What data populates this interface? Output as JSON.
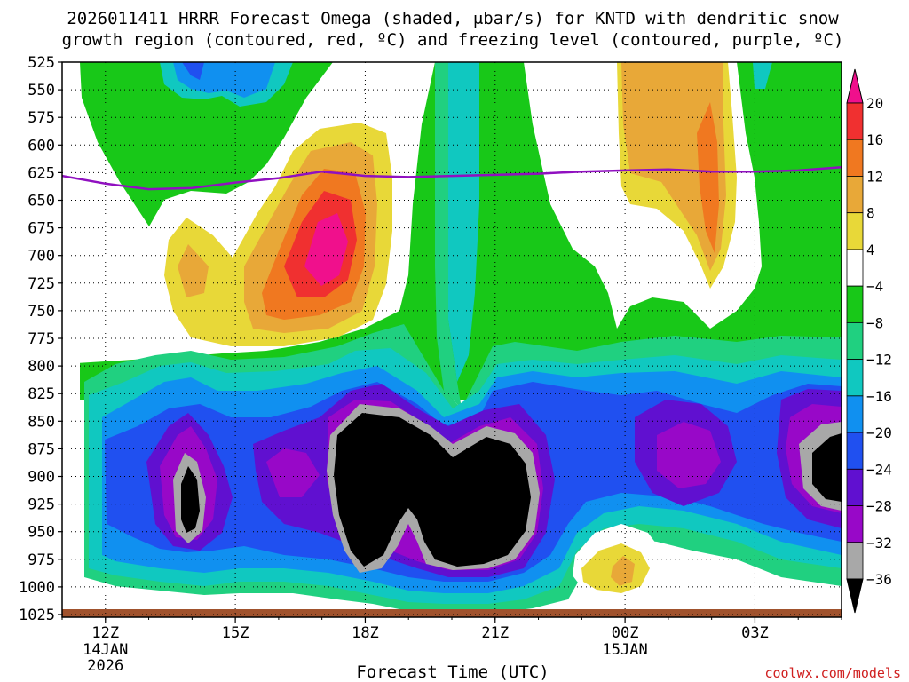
{
  "chart_data": {
    "type": "heatmap",
    "title_line1": "2026011411 HRRR Forecast Omega (shaded, μbar/s) for KNTD with dendritic snow",
    "title_line2": "growth region (contoured, red, ºC) and freezing level (contoured, purple, ºC)",
    "xlabel": "Forecast Time (UTC)",
    "credit": "coolwx.com/models",
    "y_axis": {
      "label": "",
      "inverted": true,
      "range": [
        525,
        1025
      ],
      "ticks": [
        "525",
        "550",
        "575",
        "600",
        "625",
        "650",
        "675",
        "700",
        "725",
        "750",
        "775",
        "800",
        "825",
        "850",
        "875",
        "900",
        "925",
        "950",
        "975",
        "1000",
        "1025"
      ]
    },
    "x_axis": {
      "range_hours": [
        11,
        29
      ],
      "ticks": [
        {
          "hour": 12,
          "label": "12Z",
          "sub1": "14JAN",
          "sub2": "2026"
        },
        {
          "hour": 15,
          "label": "15Z",
          "sub1": "",
          "sub2": ""
        },
        {
          "hour": 18,
          "label": "18Z",
          "sub1": "",
          "sub2": ""
        },
        {
          "hour": 21,
          "label": "21Z",
          "sub1": "",
          "sub2": ""
        },
        {
          "hour": 24,
          "label": "00Z",
          "sub1": "15JAN",
          "sub2": ""
        },
        {
          "hour": 27,
          "label": "03Z",
          "sub1": "",
          "sub2": ""
        }
      ]
    },
    "colorbar": {
      "labels": [
        "20",
        "16",
        "12",
        "8",
        "4",
        "−4",
        "−8",
        "−12",
        "−16",
        "−20",
        "−24",
        "−28",
        "−32",
        "−36"
      ],
      "colors_top_to_bottom": [
        "#f0108c",
        "#f03030",
        "#f07820",
        "#e8a838",
        "#e8d838",
        "#ffffff",
        "#18c818",
        "#20d080",
        "#10c8c0",
        "#1090f0",
        "#2050f0",
        "#6010d0",
        "#9808c8",
        "#a8a8a8",
        "#000000"
      ]
    },
    "freezing_level": {
      "color": "#9010c0",
      "hours": [
        11,
        12,
        13,
        14,
        15,
        16,
        17,
        18,
        19,
        20,
        21,
        22,
        23,
        24,
        25,
        26,
        27,
        28,
        29
      ],
      "pressure_mb": [
        628,
        635,
        640,
        639,
        634,
        630,
        624,
        628,
        629,
        628,
        627,
        626,
        624,
        623,
        622,
        624,
        624,
        623,
        620
      ]
    },
    "ground_color": "#a0522d"
  }
}
